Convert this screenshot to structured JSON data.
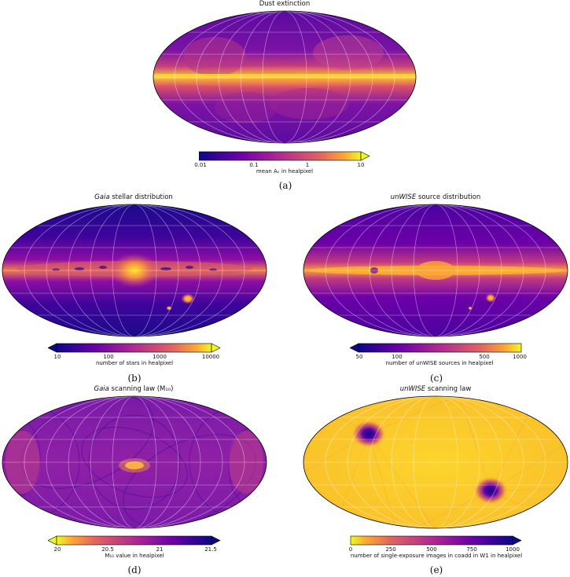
{
  "figure": {
    "panel_a": {
      "title": "Dust extinction",
      "colorbar_label": "mean Aᵥ in healpixel",
      "ticks": [
        "0.01",
        "0.1",
        "1",
        "10"
      ],
      "letter": "(a)",
      "colormap": "plasma",
      "extend": "right"
    },
    "panel_b": {
      "title_italic": "Gaia",
      "title_rest": " stellar distribution",
      "colorbar_label": "number of stars in healpixel",
      "ticks": [
        "10",
        "100",
        "1000",
        "10000"
      ],
      "letter": "(b)",
      "colormap": "plasma",
      "extend": "both"
    },
    "panel_c": {
      "title_italic": "unWISE",
      "title_rest": " source distribution",
      "colorbar_label": "number of unWISE sources in healpixel",
      "ticks": [
        "50",
        "100",
        "500",
        "1000"
      ],
      "letter": "(c)",
      "colormap": "plasma",
      "extend": "left"
    },
    "panel_d": {
      "title_italic": "Gaia",
      "title_rest": " scanning law (M₁₀)",
      "colorbar_label": "M₁₀ value in healpixel",
      "ticks": [
        "20",
        "20.5",
        "21",
        "21.5"
      ],
      "letter": "(d)",
      "colormap": "plasma_r",
      "extend": "both"
    },
    "panel_e": {
      "title_italic": "unWISE",
      "title_rest": " scanning law",
      "colorbar_label": "number of single-exposure images in coadd in W1 in healpixel",
      "ticks": [
        "0",
        "250",
        "500",
        "750",
        "1000"
      ],
      "letter": "(e)",
      "colormap": "plasma_r",
      "extend": "right"
    }
  }
}
